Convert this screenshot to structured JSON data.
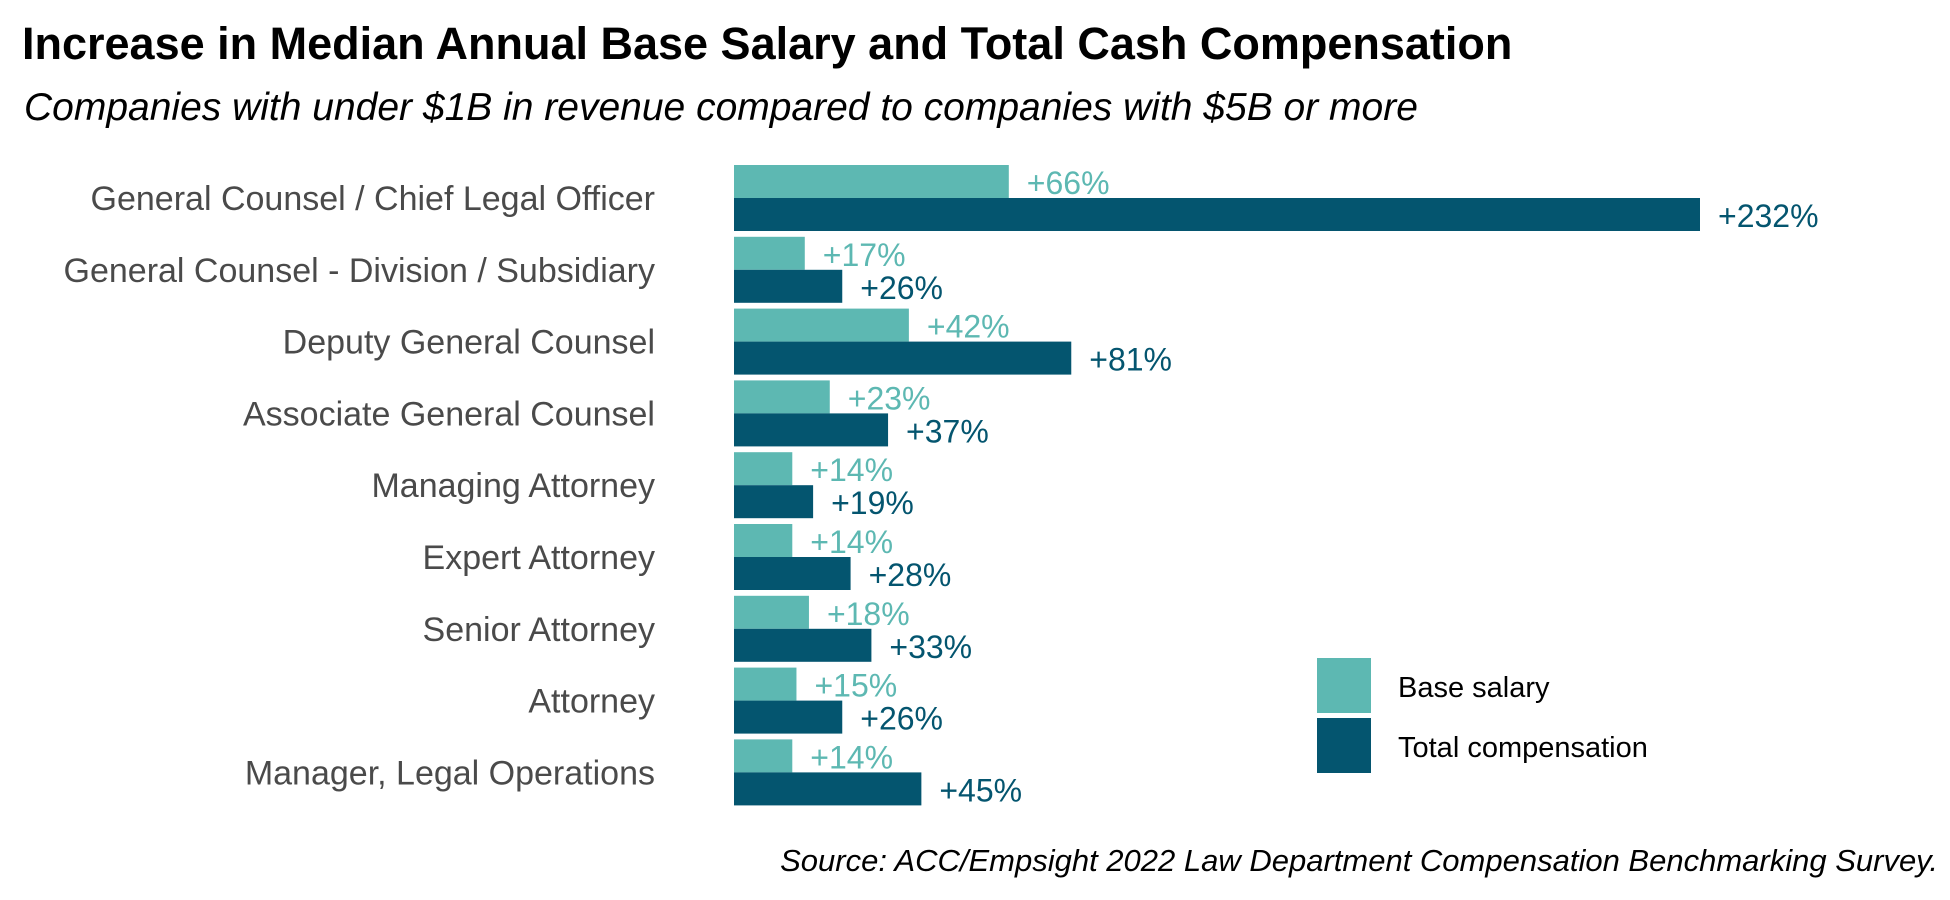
{
  "chart_data": {
    "type": "bar",
    "orientation": "horizontal",
    "title": "Increase in Median Annual Base Salary and Total Cash Compensation",
    "subtitle": "Companies with under $1B in revenue compared to companies with $5B or more",
    "source": "Source: ACC/Empsight 2022 Law Department Compensation Benchmarking Survey.",
    "categories": [
      "General Counsel / Chief Legal Officer",
      "General Counsel - Division / Subsidiary",
      "Deputy General Counsel",
      "Associate General Counsel",
      "Managing Attorney",
      "Expert Attorney",
      "Senior Attorney",
      "Attorney",
      "Manager, Legal Operations"
    ],
    "series": [
      {
        "name": "Base salary",
        "color": "#5db8b2",
        "values": [
          66,
          17,
          42,
          23,
          14,
          14,
          18,
          15,
          14
        ],
        "labels": [
          "+66%",
          "+17%",
          "+42%",
          "+23%",
          "+14%",
          "+14%",
          "+18%",
          "+15%",
          "+14%"
        ]
      },
      {
        "name": "Total compensation",
        "color": "#04556f",
        "values": [
          232,
          26,
          81,
          37,
          19,
          28,
          33,
          26,
          45
        ],
        "labels": [
          "+232%",
          "+26%",
          "+81%",
          "+37%",
          "+19%",
          "+28%",
          "+33%",
          "+26%",
          "+45%"
        ]
      }
    ],
    "xlim": [
      0,
      232
    ],
    "grid": false,
    "axes_visible": false,
    "legend_position": "bottom-right"
  }
}
